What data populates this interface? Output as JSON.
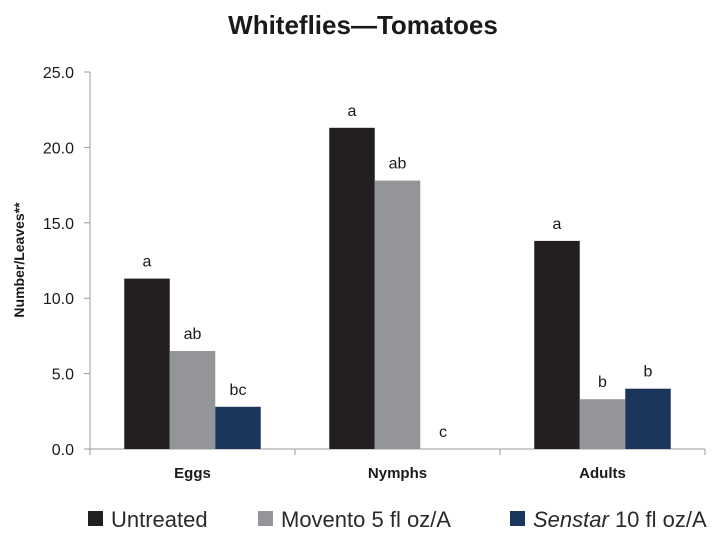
{
  "chart_data": {
    "type": "bar",
    "title": "Whiteflies—Tomatoes",
    "xlabel": "",
    "ylabel": "Number/Leaves**",
    "ylim": [
      0,
      25
    ],
    "yticks": [
      "0.0",
      "5.0",
      "10.0",
      "15.0",
      "20.0",
      "25.0"
    ],
    "ytick_values": [
      0,
      5,
      10,
      15,
      20,
      25
    ],
    "categories": [
      "Eggs",
      "Nymphs",
      "Adults"
    ],
    "grid": false,
    "legend_position": "bottom",
    "series": [
      {
        "name": "Untreated",
        "legend_prefix": "Untreated",
        "legend_suffix": "",
        "color": "#231f20",
        "values": [
          11.3,
          21.3,
          13.8
        ],
        "letters": [
          "a",
          "a",
          "a"
        ]
      },
      {
        "name": "Movento 5 fl oz/A",
        "legend_prefix": "Movento 5 fl oz/A",
        "legend_suffix": "",
        "color": "#939598",
        "values": [
          6.5,
          17.8,
          3.3
        ],
        "letters": [
          "ab",
          "ab",
          "b"
        ]
      },
      {
        "name": "Senstar 10 fl oz/A",
        "legend_prefix": "Senstar",
        "legend_suffix": " 10 fl oz/A",
        "color": "#1b365d",
        "values": [
          2.8,
          0,
          4.0
        ],
        "letters": [
          "bc",
          "c",
          "b"
        ]
      }
    ]
  }
}
